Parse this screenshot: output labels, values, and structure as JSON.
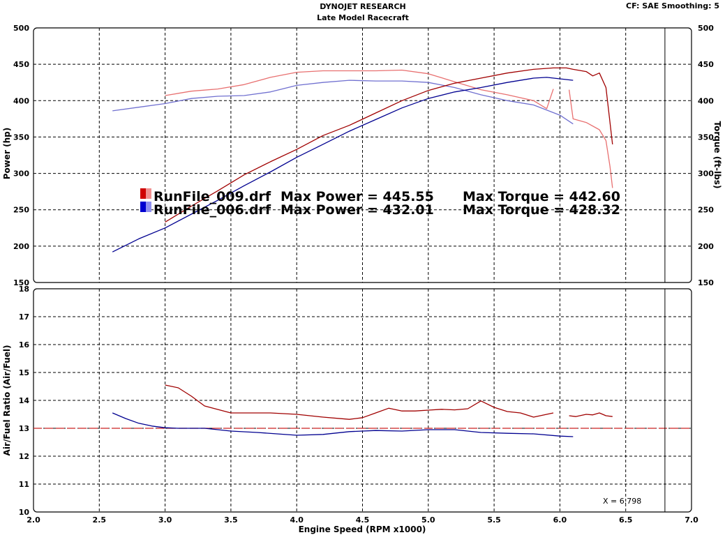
{
  "header": {
    "title": "DYNOJET RESEARCH",
    "subtitle": "Late Model Racecraft",
    "settings": "CF: SAE  Smoothing: 5"
  },
  "colors": {
    "run009_power": "#a00000",
    "run009_torque": "#e87070",
    "run006_power": "#000090",
    "run006_torque": "#7070d0",
    "reference_line": "#cc2020"
  },
  "chart_data": [
    {
      "type": "line",
      "panel": "power-torque",
      "xlabel": "Engine Speed (RPM x1000)",
      "ylabel_left": "Power (hp)",
      "ylabel_right": "Torque (ft-lbs)",
      "xlim": [
        2.0,
        7.0
      ],
      "ylim": [
        150,
        500
      ],
      "x_ticks": [
        "2.0",
        "2.5",
        "3.0",
        "3.5",
        "4.0",
        "4.5",
        "5.0",
        "5.5",
        "6.0",
        "6.5",
        "7.0"
      ],
      "y_ticks": [
        "150",
        "200",
        "250",
        "300",
        "350",
        "400",
        "450",
        "500"
      ],
      "grid": true,
      "series": [
        {
          "name": "RunFile_009.drf",
          "measure": "power",
          "x": [
            3.0,
            3.2,
            3.4,
            3.6,
            3.8,
            4.0,
            4.2,
            4.4,
            4.6,
            4.8,
            5.0,
            5.2,
            5.4,
            5.6,
            5.8,
            5.95,
            6.05,
            6.1,
            6.2,
            6.25,
            6.3,
            6.35,
            6.4
          ],
          "values": [
            233,
            255,
            276,
            298,
            316,
            333,
            352,
            366,
            383,
            400,
            414,
            424,
            431,
            438,
            443,
            445,
            445,
            443,
            440,
            434,
            438,
            418,
            340
          ]
        },
        {
          "name": "RunFile_009.drf",
          "measure": "torque",
          "segments": [
            {
              "x": [
                3.0,
                3.2,
                3.4,
                3.6,
                3.8,
                4.0,
                4.2,
                4.4,
                4.6,
                4.8,
                5.0,
                5.2,
                5.4,
                5.6,
                5.8,
                5.9,
                5.95
              ],
              "values": [
                407,
                413,
                416,
                422,
                432,
                439,
                441,
                441,
                441,
                442,
                437,
                426,
                415,
                408,
                400,
                389,
                416
              ]
            },
            {
              "x": [
                6.07,
                6.1,
                6.2,
                6.3,
                6.35,
                6.38,
                6.4
              ],
              "values": [
                415,
                375,
                370,
                360,
                345,
                310,
                280
              ]
            }
          ]
        },
        {
          "name": "RunFile_006.drf",
          "measure": "power",
          "x": [
            2.6,
            2.8,
            3.0,
            3.2,
            3.4,
            3.6,
            3.8,
            4.0,
            4.2,
            4.4,
            4.6,
            4.8,
            5.0,
            5.2,
            5.4,
            5.6,
            5.8,
            5.9,
            6.0,
            6.1
          ],
          "values": [
            192,
            210,
            225,
            244,
            263,
            283,
            302,
            322,
            340,
            358,
            374,
            390,
            403,
            412,
            418,
            425,
            431,
            432,
            430,
            428
          ]
        },
        {
          "name": "RunFile_006.drf",
          "measure": "torque",
          "x": [
            2.6,
            2.8,
            3.0,
            3.2,
            3.4,
            3.6,
            3.8,
            4.0,
            4.2,
            4.4,
            4.6,
            4.8,
            5.0,
            5.2,
            5.4,
            5.6,
            5.8,
            6.0,
            6.1
          ],
          "values": [
            386,
            391,
            396,
            403,
            406,
            407,
            412,
            421,
            425,
            428,
            427,
            427,
            425,
            418,
            408,
            400,
            394,
            380,
            368
          ]
        }
      ],
      "annotations": [
        {
          "file": "RunFile_009.drf",
          "max_power": "Max Power = 445.55",
          "max_torque": "Max Torque = 442.60"
        },
        {
          "file": "RunFile_006.drf",
          "max_power": "Max Power = 432.01",
          "max_torque": "Max Torque = 428.32"
        }
      ]
    },
    {
      "type": "line",
      "panel": "air-fuel",
      "xlabel": "Engine Speed (RPM x1000)",
      "ylabel": "Air/Fuel Ratio (Air/Fuel)",
      "xlim": [
        2.0,
        7.0
      ],
      "ylim": [
        10,
        18
      ],
      "x_ticks": [
        "2.0",
        "2.5",
        "3.0",
        "3.5",
        "4.0",
        "4.5",
        "5.0",
        "5.5",
        "6.0",
        "6.5",
        "7.0"
      ],
      "y_ticks": [
        "10",
        "11",
        "12",
        "13",
        "14",
        "15",
        "16",
        "17",
        "18"
      ],
      "reference_value": 13.0,
      "grid": true,
      "series": [
        {
          "name": "RunFile_009.drf",
          "segments": [
            {
              "x": [
                3.0,
                3.1,
                3.2,
                3.3,
                3.5,
                3.8,
                4.0,
                4.2,
                4.4,
                4.5,
                4.6,
                4.7,
                4.8,
                4.9,
                5.0,
                5.1,
                5.2,
                5.3,
                5.4,
                5.5,
                5.6,
                5.7,
                5.8,
                5.9,
                5.95
              ],
              "values": [
                14.55,
                14.45,
                14.15,
                13.8,
                13.55,
                13.55,
                13.5,
                13.4,
                13.32,
                13.38,
                13.55,
                13.72,
                13.62,
                13.62,
                13.65,
                13.68,
                13.66,
                13.7,
                13.98,
                13.75,
                13.6,
                13.55,
                13.4,
                13.5,
                13.55
              ]
            },
            {
              "x": [
                6.07,
                6.12,
                6.2,
                6.25,
                6.3,
                6.35,
                6.4
              ],
              "values": [
                13.45,
                13.42,
                13.5,
                13.48,
                13.55,
                13.45,
                13.42
              ]
            }
          ]
        },
        {
          "name": "RunFile_006.drf",
          "x": [
            2.6,
            2.7,
            2.8,
            2.9,
            3.0,
            3.1,
            3.3,
            3.5,
            3.7,
            4.0,
            4.2,
            4.4,
            4.6,
            4.8,
            5.0,
            5.2,
            5.4,
            5.6,
            5.8,
            6.0,
            6.1
          ],
          "values": [
            13.55,
            13.35,
            13.18,
            13.08,
            13.02,
            13.0,
            13.0,
            12.9,
            12.85,
            12.75,
            12.78,
            12.88,
            12.92,
            12.9,
            12.95,
            12.95,
            12.85,
            12.82,
            12.8,
            12.72,
            12.7
          ]
        }
      ],
      "cursor": {
        "x": 6.798,
        "label": "X = 6.798"
      }
    }
  ]
}
